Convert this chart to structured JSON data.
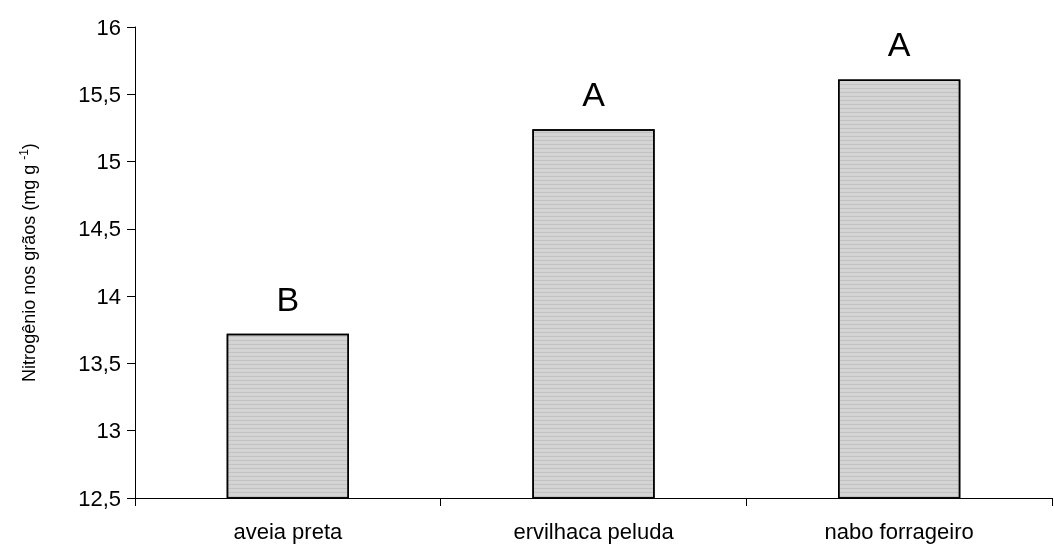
{
  "chart_data": {
    "type": "bar",
    "ylabel": "Nitrogênio nos grãos (mg g $^{-1}$)",
    "categories": [
      "aveia preta",
      "ervilhaca peluda",
      "nabo forrageiro"
    ],
    "values": [
      13.72,
      15.24,
      15.61
    ],
    "color": "#d4d4d4",
    "ylim": [
      12.5,
      16
    ],
    "yticks": [
      {
        "value": 12.5,
        "label": "12,5"
      },
      13,
      {
        "value": 13.5,
        "label": "13,5"
      },
      14,
      {
        "value": 14.5,
        "label": "14,5"
      },
      15,
      {
        "value": 15.5,
        "label": "15,5"
      },
      16
    ],
    "grid": false,
    "annotations": [
      {
        "text": "B",
        "x": "aveia preta",
        "y": 13.72
      },
      {
        "text": "A",
        "x": "ervilhaca peluda",
        "y": 15.24
      },
      {
        "text": "A",
        "x": "nabo forrageiro",
        "y": 15.61
      }
    ]
  }
}
